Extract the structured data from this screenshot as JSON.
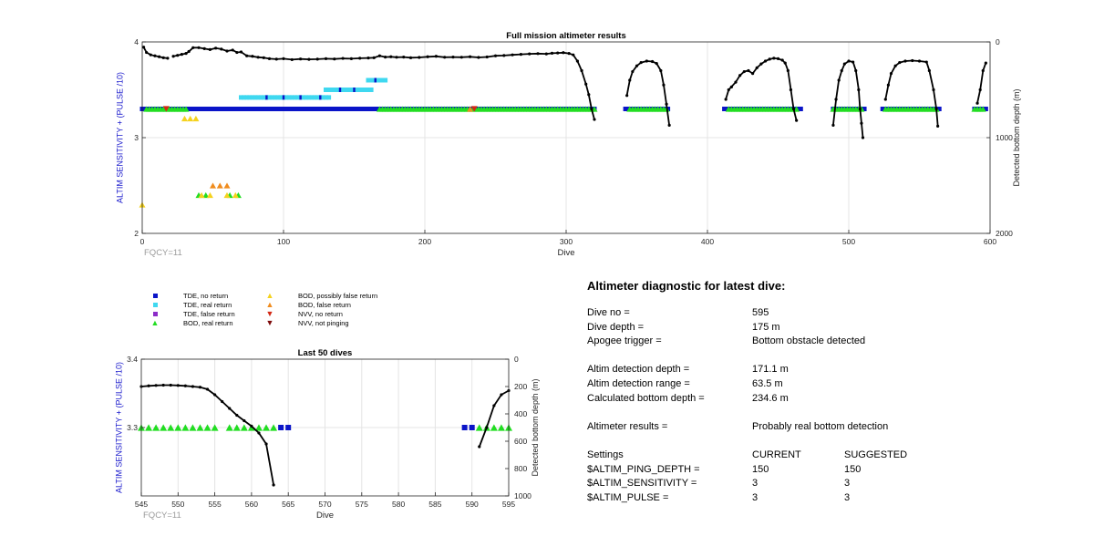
{
  "colors": {
    "tde_no_return": "#0a14c8",
    "tde_real_return": "#3fd8f0",
    "tde_false_return": "#8c2cc8",
    "bod_real_return": "#22dd22",
    "bod_possibly_false": "#f5d21e",
    "bod_false_return": "#f08c1e",
    "nvv_no_return": "#d22814",
    "nvv_not_pinging": "#7d0a0a",
    "left_axis_label": "#1a1acc",
    "depth_line": "#000000"
  },
  "legend": {
    "items": [
      {
        "label": "TDE, no return",
        "marker": "square",
        "color_key": "tde_no_return"
      },
      {
        "label": "TDE, real return",
        "marker": "square",
        "color_key": "tde_real_return"
      },
      {
        "label": "TDE, false return",
        "marker": "square",
        "color_key": "tde_false_return"
      },
      {
        "label": "BOD, real return",
        "marker": "triangle-up",
        "color_key": "bod_real_return"
      },
      {
        "label": "BOD, possibly false return",
        "marker": "triangle-up",
        "color_key": "bod_possibly_false"
      },
      {
        "label": "BOD, false return",
        "marker": "triangle-up",
        "color_key": "bod_false_return"
      },
      {
        "label": "NVV, no return",
        "marker": "triangle-down",
        "color_key": "nvv_no_return"
      },
      {
        "label": "NVV, not pinging",
        "marker": "triangle-down",
        "color_key": "nvv_not_pinging"
      }
    ]
  },
  "chart_data": [
    {
      "type": "scatter",
      "title": "Full mission altimeter results",
      "xlabel": "Dive",
      "ylabel": "ALTIM SENSITIVITY + (PULSE /10)",
      "y2label": "Detected bottom depth (m)",
      "corner_label": "FQCY=11",
      "xlim": [
        0,
        600
      ],
      "ylim": [
        2,
        4
      ],
      "y2lim": [
        0,
        2000
      ],
      "y2_reversed": true,
      "xticks": [
        "0",
        "100",
        "200",
        "300",
        "400",
        "500",
        "600"
      ],
      "yticks": [
        "2",
        "3",
        "4"
      ],
      "y2ticks": [
        "0",
        "1000",
        "2000"
      ],
      "grid": true,
      "depth_series": [
        [
          [
            1,
            55
          ],
          [
            3,
            110
          ],
          [
            6,
            135
          ],
          [
            9,
            145
          ],
          [
            12,
            155
          ],
          [
            15,
            165
          ],
          [
            18,
            170
          ]
        ],
        [
          [
            22,
            150
          ],
          [
            25,
            140
          ],
          [
            28,
            130
          ],
          [
            31,
            120
          ],
          [
            33,
            100
          ],
          [
            36,
            60
          ],
          [
            40,
            60
          ],
          [
            44,
            70
          ],
          [
            48,
            80
          ],
          [
            52,
            65
          ],
          [
            56,
            75
          ],
          [
            60,
            95
          ],
          [
            64,
            85
          ],
          [
            67,
            110
          ],
          [
            70,
            105
          ],
          [
            74,
            145
          ],
          [
            78,
            150
          ],
          [
            82,
            160
          ],
          [
            86,
            165
          ],
          [
            90,
            175
          ],
          [
            95,
            180
          ],
          [
            100,
            175
          ],
          [
            106,
            185
          ],
          [
            112,
            178
          ],
          [
            118,
            182
          ],
          [
            124,
            180
          ],
          [
            130,
            175
          ],
          [
            136,
            178
          ],
          [
            142,
            172
          ],
          [
            148,
            175
          ],
          [
            154,
            170
          ],
          [
            160,
            168
          ],
          [
            164,
            165
          ],
          [
            168,
            145
          ],
          [
            172,
            158
          ],
          [
            176,
            155
          ],
          [
            180,
            160
          ],
          [
            185,
            158
          ],
          [
            190,
            165
          ],
          [
            196,
            162
          ],
          [
            202,
            155
          ],
          [
            208,
            150
          ],
          [
            214,
            160
          ],
          [
            220,
            158
          ],
          [
            226,
            160
          ],
          [
            232,
            155
          ],
          [
            238,
            162
          ],
          [
            244,
            157
          ],
          [
            250,
            145
          ],
          [
            256,
            142
          ],
          [
            262,
            135
          ],
          [
            268,
            130
          ],
          [
            274,
            125
          ],
          [
            280,
            122
          ],
          [
            286,
            125
          ],
          [
            290,
            118
          ],
          [
            294,
            115
          ],
          [
            298,
            112
          ],
          [
            302,
            120
          ],
          [
            305,
            135
          ],
          [
            308,
            200
          ],
          [
            311,
            300
          ],
          [
            314,
            440
          ],
          [
            316,
            550
          ],
          [
            318,
            700
          ],
          [
            320,
            810
          ]
        ],
        [
          [
            343,
            560
          ],
          [
            345,
            400
          ],
          [
            347,
            310
          ],
          [
            350,
            250
          ],
          [
            353,
            215
          ],
          [
            357,
            200
          ],
          [
            361,
            205
          ],
          [
            364,
            225
          ],
          [
            367,
            300
          ],
          [
            369,
            450
          ],
          [
            371,
            650
          ],
          [
            373,
            870
          ]
        ],
        [
          [
            413,
            600
          ],
          [
            415,
            500
          ],
          [
            417,
            470
          ],
          [
            420,
            420
          ],
          [
            423,
            350
          ],
          [
            426,
            310
          ],
          [
            429,
            300
          ],
          [
            432,
            330
          ],
          [
            435,
            270
          ],
          [
            438,
            230
          ],
          [
            441,
            200
          ],
          [
            444,
            180
          ],
          [
            447,
            170
          ],
          [
            450,
            175
          ],
          [
            453,
            190
          ],
          [
            455,
            220
          ],
          [
            457,
            300
          ],
          [
            459,
            500
          ],
          [
            461,
            700
          ],
          [
            463,
            820
          ]
        ],
        [
          [
            489,
            870
          ],
          [
            491,
            600
          ],
          [
            493,
            400
          ],
          [
            495,
            300
          ],
          [
            497,
            230
          ],
          [
            500,
            200
          ],
          [
            503,
            210
          ],
          [
            505,
            300
          ],
          [
            507,
            500
          ],
          [
            508,
            700
          ],
          [
            509,
            850
          ],
          [
            510,
            1000
          ]
        ],
        [
          [
            526,
            600
          ],
          [
            528,
            450
          ],
          [
            530,
            330
          ],
          [
            533,
            250
          ],
          [
            536,
            215
          ],
          [
            540,
            200
          ],
          [
            545,
            195
          ],
          [
            550,
            200
          ],
          [
            555,
            210
          ],
          [
            557,
            300
          ],
          [
            560,
            500
          ],
          [
            562,
            700
          ],
          [
            563,
            880
          ]
        ],
        [
          [
            591,
            640
          ],
          [
            593,
            500
          ],
          [
            595,
            300
          ],
          [
            597,
            220
          ]
        ]
      ],
      "tde_no_return_runs": [
        [
          0,
          320
        ],
        [
          342,
          373
        ],
        [
          412,
          466
        ],
        [
          489,
          512
        ],
        [
          524,
          565
        ],
        [
          589,
          597
        ]
      ],
      "tde_real_return_runs": [
        [
          70,
          133
        ],
        [
          130,
          162
        ],
        [
          160,
          172
        ]
      ],
      "bod_real_runs": [
        [
          3,
          32
        ],
        [
          168,
          320
        ],
        [
          345,
          371
        ],
        [
          415,
          463
        ],
        [
          489,
          510
        ],
        [
          526,
          563
        ],
        [
          589,
          596
        ]
      ],
      "bod_possibly_false_points": [
        [
          0,
          2.3
        ],
        [
          30,
          3.2
        ],
        [
          34,
          3.2
        ],
        [
          38,
          3.2
        ],
        [
          42,
          2.4
        ],
        [
          48,
          2.4
        ],
        [
          66,
          2.4
        ],
        [
          60,
          2.4
        ]
      ],
      "bod_false_points": [
        [
          50,
          2.5
        ],
        [
          55,
          2.5
        ],
        [
          60,
          2.5
        ],
        [
          232,
          3.3
        ]
      ],
      "bod_real_low_points": [
        [
          40,
          2.4
        ],
        [
          45,
          2.4
        ],
        [
          62,
          2.4
        ],
        [
          68,
          2.4
        ]
      ],
      "nvv_no_return_points": [
        [
          17,
          3.3
        ],
        [
          235,
          3.3
        ]
      ]
    },
    {
      "type": "scatter",
      "title": "Last 50 dives",
      "xlabel": "Dive",
      "ylabel": "ALTIM SENSITIVITY + (PULSE /10)",
      "y2label": "Detected bottom depth (m)",
      "corner_label": "FQCY=11",
      "xlim": [
        545,
        595
      ],
      "ylim": [
        3.2,
        3.4
      ],
      "y2lim": [
        0,
        1000
      ],
      "y2_reversed": true,
      "xticks": [
        "545",
        "550",
        "555",
        "560",
        "565",
        "570",
        "575",
        "580",
        "585",
        "590",
        "595"
      ],
      "yticks": [
        "3.3",
        "3.4"
      ],
      "y2ticks": [
        "0",
        "200",
        "400",
        "600",
        "800",
        "1000"
      ],
      "grid": true,
      "depth_series": [
        [
          [
            545,
            200
          ],
          [
            546,
            195
          ],
          [
            547,
            192
          ],
          [
            548,
            190
          ],
          [
            549,
            190
          ],
          [
            550,
            192
          ],
          [
            551,
            195
          ],
          [
            552,
            200
          ],
          [
            553,
            205
          ],
          [
            554,
            220
          ],
          [
            555,
            260
          ],
          [
            556,
            310
          ],
          [
            557,
            360
          ],
          [
            558,
            410
          ],
          [
            559,
            450
          ],
          [
            560,
            490
          ],
          [
            561,
            540
          ],
          [
            562,
            620
          ],
          [
            563,
            920
          ]
        ],
        [
          [
            591,
            640
          ],
          [
            592,
            500
          ],
          [
            593,
            340
          ],
          [
            594,
            260
          ],
          [
            595,
            230
          ]
        ]
      ],
      "bod_real_points": [
        545,
        546,
        547,
        548,
        549,
        550,
        551,
        552,
        553,
        554,
        555,
        557,
        558,
        559,
        560,
        561,
        562,
        563,
        591,
        592,
        593,
        594,
        595
      ],
      "tde_no_return_points": [
        564,
        565,
        589,
        590
      ]
    }
  ],
  "diagnostic": {
    "title": "Altimeter diagnostic for latest dive:",
    "rows1": [
      {
        "label": "Dive no =",
        "value": "595"
      },
      {
        "label": "Dive depth =",
        "value": "175 m"
      },
      {
        "label": "Apogee trigger =",
        "value": "Bottom obstacle detected"
      }
    ],
    "rows2": [
      {
        "label": "Altim detection depth =",
        "value": "171.1 m"
      },
      {
        "label": "Altim detection range =",
        "value": "63.5 m"
      },
      {
        "label": "Calculated bottom depth =",
        "value": "234.6 m"
      }
    ],
    "rows3": [
      {
        "label": "Altimeter results =",
        "value": "Probably real bottom detection"
      }
    ],
    "settings_header": {
      "label": "Settings",
      "current": "CURRENT",
      "suggested": "SUGGESTED"
    },
    "settings": [
      {
        "label": "$ALTIM_PING_DEPTH =",
        "current": "150",
        "suggested": "150"
      },
      {
        "label": "$ALTIM_SENSITIVITY =",
        "current": "3",
        "suggested": "3"
      },
      {
        "label": "$ALTIM_PULSE =",
        "current": "3",
        "suggested": "3"
      }
    ]
  }
}
